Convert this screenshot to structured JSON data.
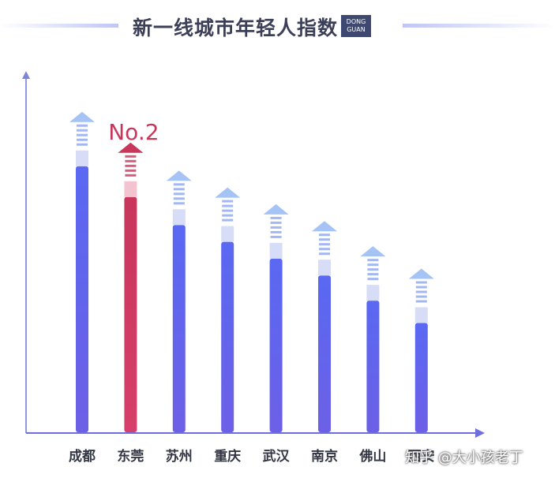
{
  "header": {
    "title": "新一线城市年轻人指数",
    "badge_line1": "DONG",
    "badge_line2": "GUAN"
  },
  "chart_data": {
    "type": "bar",
    "categories": [
      "成都",
      "东莞",
      "苏州",
      "重庆",
      "武汉",
      "南京",
      "佛山",
      "西安"
    ],
    "values": [
      95,
      84,
      74,
      68,
      62,
      56,
      47,
      39
    ],
    "highlight_index": 1,
    "highlight_label": "No.2",
    "colors": {
      "primary": "#5b63ee",
      "highlight": "#c8365c"
    }
  },
  "watermark": "知乎 @大小孩老丁"
}
